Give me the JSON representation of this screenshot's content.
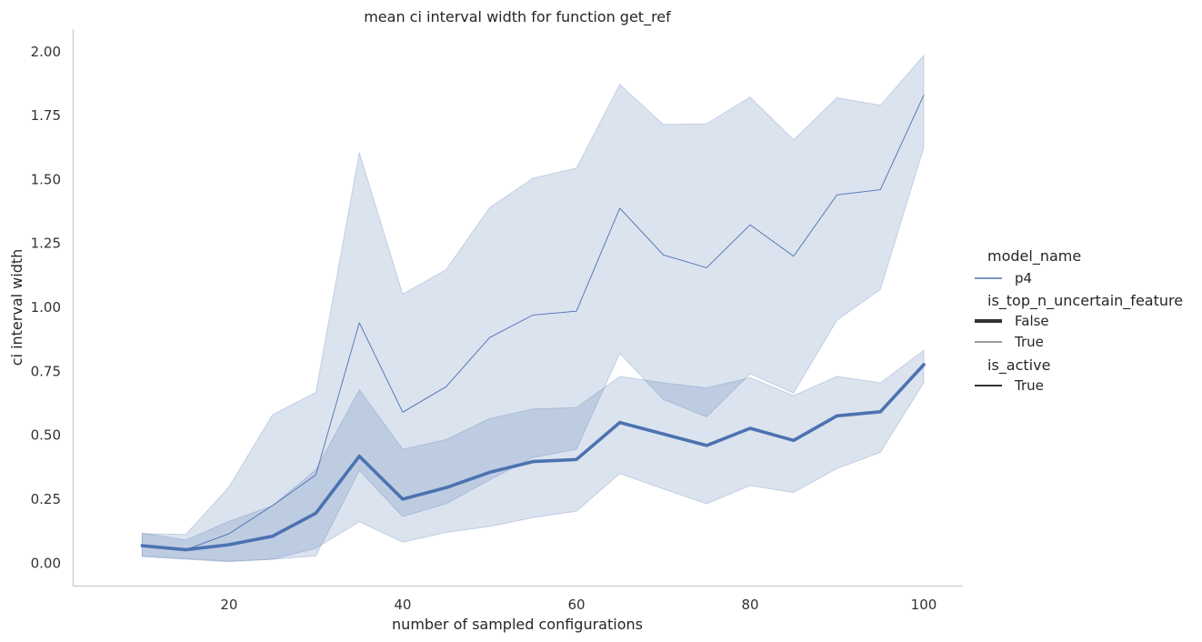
{
  "chart_data": {
    "type": "line",
    "title": "mean ci interval width for function get_ref",
    "xlabel": "number of sampled configurations",
    "ylabel": "ci interval width",
    "xlim": [
      2,
      104.5
    ],
    "ylim": [
      -0.088,
      2.088
    ],
    "xticks": [
      20,
      40,
      60,
      80,
      100
    ],
    "yticks": [
      0.0,
      0.25,
      0.5,
      0.75,
      1.0,
      1.25,
      1.5,
      1.75,
      2.0
    ],
    "grid": false,
    "legend_position": "right",
    "color": "#4c72b0",
    "x": [
      10,
      15,
      20,
      25,
      30,
      35,
      40,
      45,
      50,
      55,
      60,
      65,
      70,
      75,
      80,
      85,
      90,
      95,
      100
    ],
    "series": [
      {
        "name": "False",
        "line_weight": "thick",
        "values": [
          0.068,
          0.052,
          0.072,
          0.105,
          0.195,
          0.418,
          0.25,
          0.295,
          0.355,
          0.397,
          0.405,
          0.55,
          0.505,
          0.46,
          0.527,
          0.48,
          0.576,
          0.592,
          0.776
        ],
        "ci_lower": [
          0.028,
          0.018,
          0.008,
          0.015,
          0.058,
          0.162,
          0.082,
          0.12,
          0.143,
          0.178,
          0.203,
          0.35,
          0.29,
          0.232,
          0.303,
          0.276,
          0.37,
          0.433,
          0.706
        ],
        "ci_upper": [
          0.118,
          0.09,
          0.163,
          0.225,
          0.365,
          0.678,
          0.445,
          0.483,
          0.565,
          0.603,
          0.608,
          0.73,
          0.705,
          0.685,
          0.725,
          0.655,
          0.73,
          0.705,
          0.832
        ]
      },
      {
        "name": "True",
        "line_weight": "thin",
        "values": [
          0.068,
          0.052,
          0.115,
          0.225,
          0.345,
          0.94,
          0.59,
          0.69,
          0.882,
          0.97,
          0.985,
          1.388,
          1.205,
          1.155,
          1.323,
          1.2,
          1.44,
          1.46,
          1.83
        ],
        "ci_lower": [
          0.025,
          0.015,
          0.005,
          0.015,
          0.028,
          0.362,
          0.182,
          0.232,
          0.325,
          0.413,
          0.445,
          0.82,
          0.64,
          0.572,
          0.74,
          0.665,
          0.95,
          1.07,
          1.625
        ],
        "ci_upper": [
          0.115,
          0.112,
          0.298,
          0.58,
          0.668,
          1.605,
          1.052,
          1.148,
          1.39,
          1.505,
          1.545,
          1.872,
          1.715,
          1.718,
          1.822,
          1.655,
          1.82,
          1.79,
          1.985
        ]
      }
    ],
    "legend": {
      "model_name_title": "model_name",
      "model_name_item": "p4",
      "feature_title": "is_top_n_uncertain_feature",
      "feature_false": "False",
      "feature_true": "True",
      "active_title": "is_active",
      "active_true": "True"
    }
  }
}
